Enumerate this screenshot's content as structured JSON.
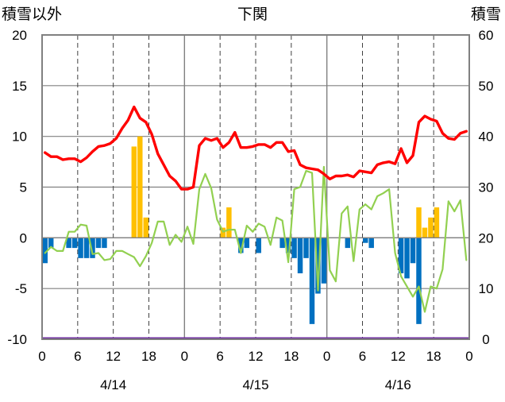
{
  "chart_data": {
    "type": "bar",
    "title": "下関",
    "left_axis_label": "積雪以外",
    "right_axis_label": "積雪",
    "left_ylim": [
      -10,
      20
    ],
    "left_ticks": [
      "20",
      "15",
      "10",
      "5",
      "0",
      "-5",
      "-10"
    ],
    "left_tick_values": [
      20,
      15,
      10,
      5,
      0,
      -5,
      -10
    ],
    "right_ylim": [
      0,
      60
    ],
    "right_ticks": [
      "60",
      "50",
      "40",
      "30",
      "20",
      "10",
      "0"
    ],
    "right_tick_values": [
      60,
      50,
      40,
      30,
      20,
      10,
      0
    ],
    "x_hours_range": [
      0,
      72
    ],
    "x_tick_labels": [
      "0",
      "6",
      "12",
      "18",
      "0",
      "6",
      "12",
      "18",
      "0",
      "6",
      "12",
      "18",
      "0"
    ],
    "x_tick_hours": [
      0,
      6,
      12,
      18,
      24,
      30,
      36,
      42,
      48,
      54,
      60,
      66,
      72
    ],
    "date_labels": [
      "4/14",
      "4/15",
      "4/16"
    ],
    "date_label_hours": [
      12,
      36,
      60
    ],
    "grid": "dashed vertical at 6-hour ticks, solid vertical at day boundaries, solid horizontal at 5-unit steps",
    "colors": {
      "temperature": "#ff0000",
      "wind": "#92d050",
      "precipitation": "#ffc000",
      "negative_bars": "#0070c0",
      "baseline": "#7030a0",
      "grid": "#808080"
    },
    "series": {
      "temperature": [
        8.4,
        8.0,
        8.0,
        7.7,
        7.8,
        7.8,
        7.5,
        7.9,
        8.5,
        9.0,
        9.1,
        9.3,
        9.8,
        10.8,
        11.6,
        12.9,
        11.8,
        11.4,
        10.2,
        8.3,
        7.2,
        6.1,
        5.6,
        4.8,
        4.8,
        5.0,
        9.1,
        9.8,
        9.6,
        9.8,
        8.9,
        9.4,
        10.4,
        8.9,
        8.9,
        9.0,
        9.2,
        9.2,
        8.9,
        9.4,
        9.4,
        8.5,
        8.6,
        7.2,
        6.9,
        6.8,
        6.7,
        6.3,
        5.8,
        6.1,
        6.1,
        6.2,
        6.0,
        6.6,
        6.5,
        6.4,
        7.2,
        7.4,
        7.5,
        7.3,
        8.8,
        7.4,
        8.1,
        11.4,
        12.0,
        11.7,
        11.5,
        10.3,
        9.8,
        9.7,
        10.3,
        10.5
      ],
      "wind": [
        -1.5,
        -0.9,
        -1.3,
        -1.3,
        0.6,
        0.6,
        1.3,
        1.2,
        -1.6,
        -1.5,
        -2.2,
        -2.1,
        -1.3,
        -1.3,
        -1.6,
        -1.9,
        -2.8,
        -1.8,
        -0.5,
        1.6,
        1.6,
        -0.7,
        0.3,
        -0.4,
        1.1,
        -0.6,
        4.8,
        6.3,
        4.9,
        1.8,
        0.6,
        0.8,
        0.8,
        -1.5,
        1.2,
        0.6,
        1.4,
        1.1,
        -0.7,
        2.0,
        1.7,
        -2.4,
        4.8,
        5.0,
        6.6,
        6.4,
        -5.2,
        7.0,
        -3.2,
        -4.3,
        2.4,
        3.1,
        -2.3,
        2.8,
        3.3,
        2.8,
        4.1,
        4.4,
        4.8,
        -1.5,
        -3.8,
        -4.8,
        -5.8,
        -4.8,
        -7.3,
        -4.8,
        -5.0,
        -3.1,
        3.6,
        2.6,
        3.7,
        -2.2
      ],
      "precipitation": [
        0,
        0,
        0,
        0,
        0,
        0,
        0,
        0,
        0,
        0,
        0,
        0,
        0,
        0,
        0,
        9,
        10,
        2,
        0,
        0,
        0,
        0,
        0,
        0,
        0,
        0,
        0,
        0,
        0,
        0,
        1,
        3,
        0,
        0,
        0,
        0,
        0,
        0,
        0,
        0,
        0,
        0,
        0,
        0,
        0,
        0,
        0,
        0,
        0,
        0,
        0,
        0,
        0,
        0,
        0,
        0,
        0,
        0,
        0,
        0,
        0,
        0,
        0,
        3,
        1,
        2,
        3,
        0,
        0,
        0,
        0,
        0
      ],
      "negative_bars": [
        -2.5,
        -1,
        0,
        0,
        -1,
        -1,
        -2,
        -2,
        -2,
        -1,
        -1,
        0,
        0,
        0,
        0,
        0,
        0,
        0,
        0,
        0,
        0,
        0,
        0,
        0,
        0,
        0,
        0,
        0,
        0,
        0,
        0,
        0,
        0,
        -1.5,
        -1,
        0,
        -1.5,
        0,
        0,
        0,
        -1,
        -1.5,
        -2,
        -3.5,
        -2,
        -8.5,
        -5.5,
        -4.5,
        0,
        0,
        0,
        -1,
        0,
        0,
        -0.5,
        -1,
        0,
        0,
        0,
        0,
        -3.5,
        -4,
        -2.5,
        -8.5,
        0,
        0,
        0,
        0,
        0,
        0,
        0,
        0
      ]
    }
  }
}
